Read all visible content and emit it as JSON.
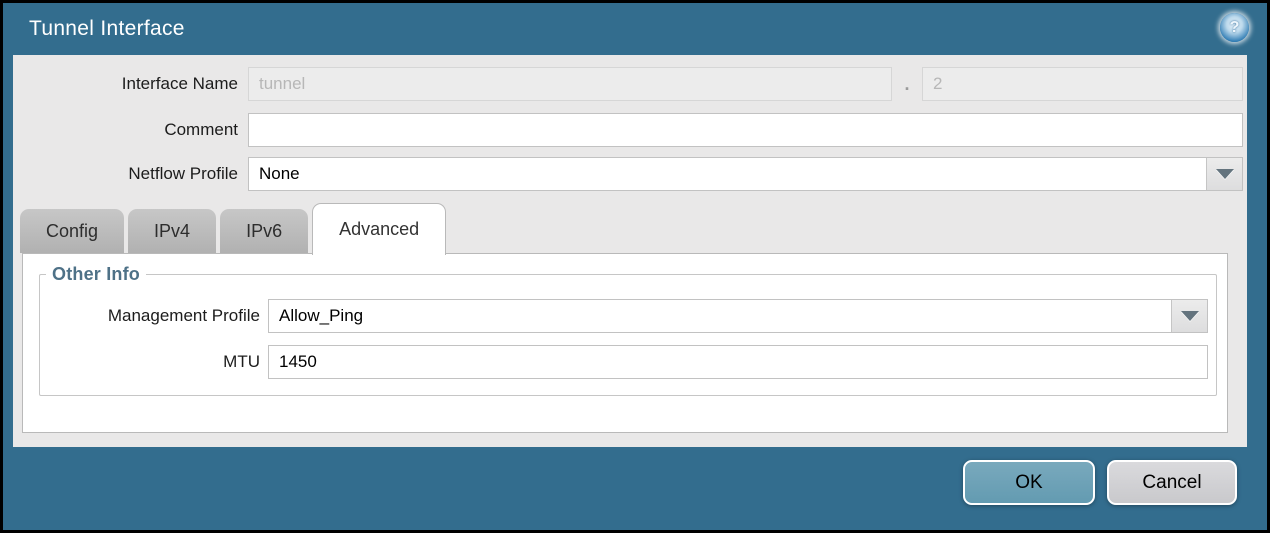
{
  "window": {
    "title": "Tunnel Interface"
  },
  "icons": {
    "help": "?",
    "dropdown_arrow": "chevron-down"
  },
  "colors": {
    "frame_teal": "#336d8e",
    "body_gray": "#e9e8e8",
    "ok_button": "#6fa3b8",
    "cancel_button": "#d2d2d4",
    "group_legend": "#4e7187"
  },
  "form": {
    "interface_name": {
      "label": "Interface Name",
      "base_value": "tunnel",
      "separator": ".",
      "suffix_value": "2"
    },
    "comment": {
      "label": "Comment",
      "value": ""
    },
    "netflow_profile": {
      "label": "Netflow Profile",
      "value": "None"
    }
  },
  "tabs": [
    {
      "label": "Config",
      "active": false
    },
    {
      "label": "IPv4",
      "active": false
    },
    {
      "label": "IPv6",
      "active": false
    },
    {
      "label": "Advanced",
      "active": true
    }
  ],
  "advanced": {
    "group_title": "Other Info",
    "management_profile": {
      "label": "Management Profile",
      "value": "Allow_Ping"
    },
    "mtu": {
      "label": "MTU",
      "value": "1450"
    }
  },
  "footer": {
    "ok": "OK",
    "cancel": "Cancel"
  }
}
